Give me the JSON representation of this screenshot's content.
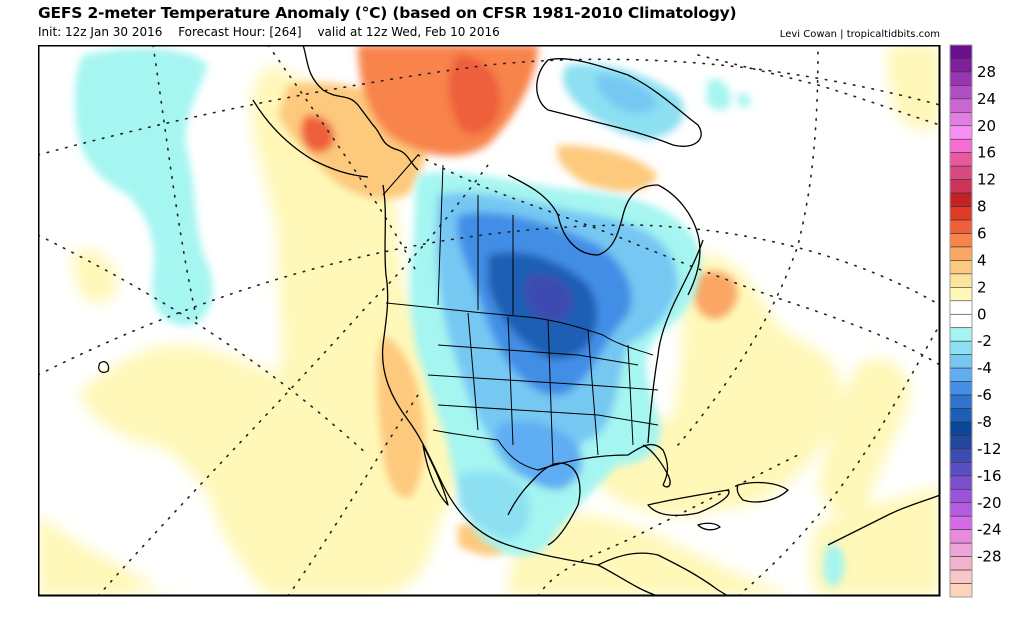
{
  "header": {
    "title": "GEFS 2-meter Temperature Anomaly (°C) (based on CFSR 1981-2010 Climatology)",
    "init": "Init: 12z Jan 30 2016",
    "forecast_hour": "Forecast Hour: [264]",
    "valid": "valid at 12z Wed, Feb 10 2016",
    "credit": "Levi Cowan | tropicaltidbits.com"
  },
  "map": {
    "model": "GEFS",
    "variable": "2-meter Temperature Anomaly",
    "units": "°C",
    "climatology": "CFSR 1981-2010",
    "region": "North America",
    "features": [
      {
        "name": "cold-anomaly-central-canada-us",
        "anomaly_c": -12
      },
      {
        "name": "cold-anomaly-texas-mexico",
        "anomaly_c": -6
      },
      {
        "name": "cold-anomaly-greenland",
        "anomaly_c": -4
      },
      {
        "name": "cold-anomaly-north-pacific",
        "anomaly_c": -2
      },
      {
        "name": "warm-anomaly-alaska-arctic",
        "anomaly_c": 6
      },
      {
        "name": "warm-anomaly-ellesmere",
        "anomaly_c": 8
      },
      {
        "name": "warm-anomaly-west-coast",
        "anomaly_c": 3
      },
      {
        "name": "warm-anomaly-north-atlantic",
        "anomaly_c": 4
      },
      {
        "name": "warm-anomaly-caribbean",
        "anomaly_c": 2
      }
    ]
  },
  "colorbar": {
    "labels": [
      "28",
      "24",
      "20",
      "16",
      "12",
      "8",
      "6",
      "4",
      "2",
      "0",
      "-2",
      "-4",
      "-6",
      "-8",
      "-12",
      "-16",
      "-20",
      "-24",
      "-28"
    ],
    "colors": [
      "#6a0f8e",
      "#7f1f9d",
      "#9a35b0",
      "#b24ec3",
      "#c966d3",
      "#e07ee3",
      "#f990f5",
      "#f56dd1",
      "#e8599e",
      "#d9497f",
      "#cc3358",
      "#c42326",
      "#de3b26",
      "#ee5f3a",
      "#f8834b",
      "#fba663",
      "#fdc97d",
      "#fde49c",
      "#fff8b8",
      "#ffffff",
      "#ffffff",
      "#a5f5f1",
      "#8ce0f2",
      "#76c8f3",
      "#5fadf3",
      "#438ee6",
      "#2e74cd",
      "#1c5fb4",
      "#0a4897",
      "#24479e",
      "#3d4cb0",
      "#5a4fc0",
      "#7a50cc",
      "#9954d8",
      "#b45be3",
      "#d76ae9",
      "#e88bdf",
      "#eca3d6",
      "#f2b4cd",
      "#fbc6c7",
      "#fdd4bb"
    ]
  }
}
